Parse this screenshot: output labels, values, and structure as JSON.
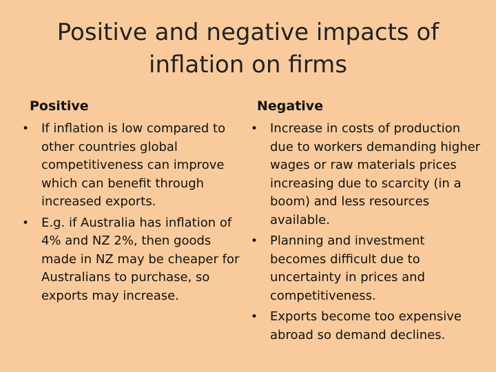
{
  "slide": {
    "title": "Positive and negative impacts of inflation on firms"
  },
  "positive": {
    "heading": "Positive",
    "items": [
      "If inflation is low compared to other countries global competitiveness can improve which can benefit through increased exports.",
      "E.g. if Australia has inflation of 4% and NZ 2%, then goods made in NZ may be cheaper for Australians to purchase, so exports may increase."
    ]
  },
  "negative": {
    "heading": "Negative",
    "items": [
      "Increase in costs of production due to workers demanding higher wages or raw materials prices increasing due to scarcity (in a boom) and less resources available.",
      "Planning and investment becomes difficult due to uncertainty in prices and competitiveness.",
      "Exports become too expensive abroad so demand declines."
    ]
  },
  "bullet_char": "•"
}
